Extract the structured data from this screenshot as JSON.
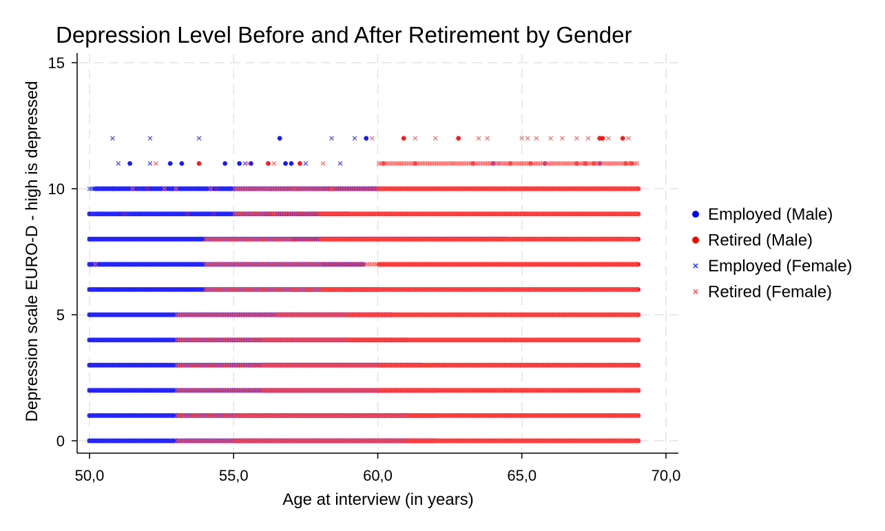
{
  "chart_data": {
    "type": "scatter",
    "title": "Depression Level Before and After Retirement by Gender",
    "xlabel": "Age at interview (in years)",
    "ylabel": "Depression scale EURO-D - high is depressed",
    "xlim": [
      50,
      70
    ],
    "ylim": [
      0,
      15
    ],
    "x_ticks": [
      "50,0",
      "55,0",
      "60,0",
      "65,0",
      "70,0"
    ],
    "y_ticks": [
      "0",
      "5",
      "10",
      "15"
    ],
    "grid": true,
    "legend_position": "right",
    "series": [
      {
        "name": "Employed (Male)",
        "marker": "circle",
        "color": "#0000ff",
        "ranges": [
          [
            0,
            50,
            62
          ],
          [
            1,
            50,
            62
          ],
          [
            2,
            50,
            62
          ],
          [
            3,
            50,
            61.5
          ],
          [
            4,
            50,
            61
          ],
          [
            5,
            50,
            60.5
          ],
          [
            6,
            50,
            60
          ],
          [
            7,
            50,
            59.5
          ],
          [
            8,
            50,
            64.5
          ],
          [
            9,
            50,
            59
          ],
          [
            10,
            50.2,
            60
          ]
        ],
        "points": [
          [
            56.6,
            12
          ],
          [
            59.6,
            12
          ],
          [
            51.4,
            11
          ],
          [
            52.8,
            11
          ],
          [
            53.2,
            11
          ],
          [
            54.7,
            11
          ],
          [
            55.2,
            11
          ],
          [
            55.6,
            11
          ],
          [
            56.8,
            11
          ],
          [
            57.0,
            11
          ],
          [
            65.8,
            11
          ],
          [
            67.7,
            11
          ],
          [
            64.0,
            11
          ],
          [
            50.8,
            10
          ],
          [
            52.5,
            10
          ],
          [
            54.9,
            10
          ],
          [
            59.5,
            10
          ],
          [
            59.8,
            10
          ],
          [
            58.3,
            10
          ],
          [
            52.9,
            10
          ],
          [
            50.4,
            9
          ],
          [
            51.0,
            9
          ],
          [
            51.8,
            9
          ],
          [
            55.1,
            9
          ],
          [
            57.4,
            9
          ]
        ]
      },
      {
        "name": "Retired (Male)",
        "marker": "circle",
        "color": "#ff0000",
        "ranges": [
          [
            0,
            55,
            69
          ],
          [
            1,
            55,
            69
          ],
          [
            2,
            56,
            69
          ],
          [
            3,
            56,
            69
          ],
          [
            4,
            56,
            69
          ],
          [
            5,
            56.5,
            69
          ],
          [
            6,
            57,
            69
          ],
          [
            7,
            60,
            69
          ],
          [
            8,
            58,
            69
          ],
          [
            9,
            58,
            69
          ],
          [
            10,
            60,
            69
          ]
        ],
        "points": [
          [
            60.9,
            12
          ],
          [
            62.8,
            12
          ],
          [
            67.7,
            12
          ],
          [
            67.8,
            12
          ],
          [
            68.5,
            12
          ],
          [
            53.8,
            11
          ],
          [
            56.2,
            11
          ],
          [
            57.3,
            11
          ],
          [
            60.2,
            11
          ],
          [
            61.3,
            11
          ],
          [
            63.3,
            11
          ],
          [
            64.6,
            11
          ],
          [
            65.3,
            11
          ],
          [
            66.9,
            11
          ],
          [
            67.2,
            11
          ],
          [
            67.5,
            11
          ],
          [
            68.6,
            11
          ],
          [
            68.8,
            11
          ],
          [
            52.0,
            10
          ],
          [
            54.4,
            10
          ],
          [
            57.1,
            10
          ],
          [
            58.4,
            10
          ],
          [
            51.2,
            9
          ],
          [
            53.4,
            9
          ],
          [
            54.3,
            9
          ],
          [
            56.4,
            9
          ]
        ]
      },
      {
        "name": "Employed (Female)",
        "marker": "x",
        "color": "#3333ff",
        "ranges": [
          [
            0,
            50,
            61
          ],
          [
            1,
            50,
            61
          ],
          [
            2,
            50,
            60
          ],
          [
            3,
            50,
            60
          ],
          [
            4,
            50,
            59
          ],
          [
            5,
            50,
            59
          ],
          [
            6,
            50,
            58
          ],
          [
            7,
            50,
            58
          ],
          [
            8,
            50,
            57
          ],
          [
            9,
            50,
            56
          ],
          [
            10,
            50,
            58
          ]
        ],
        "points": [
          [
            50.8,
            12
          ],
          [
            52.1,
            12
          ],
          [
            53.8,
            12
          ],
          [
            58.4,
            12
          ],
          [
            59.2,
            12
          ],
          [
            51.0,
            11
          ],
          [
            52.1,
            11
          ],
          [
            55.4,
            11
          ],
          [
            57.5,
            11
          ],
          [
            58.7,
            11
          ],
          [
            64.2,
            11
          ],
          [
            50.4,
            10
          ],
          [
            51.7,
            10
          ],
          [
            53.6,
            10
          ],
          [
            56.1,
            10
          ],
          [
            50.1,
            9
          ],
          [
            51.3,
            9
          ]
        ]
      },
      {
        "name": "Retired (Female)",
        "marker": "x",
        "color": "#ff5555",
        "ranges": [
          [
            0,
            53,
            69
          ],
          [
            1,
            53,
            69
          ],
          [
            2,
            53,
            69
          ],
          [
            3,
            53,
            69
          ],
          [
            4,
            53,
            69
          ],
          [
            5,
            53,
            69
          ],
          [
            6,
            54,
            69
          ],
          [
            7,
            54,
            69
          ],
          [
            8,
            54,
            69
          ],
          [
            9,
            55,
            69
          ],
          [
            10,
            55,
            69
          ],
          [
            11,
            60,
            69
          ]
        ],
        "points": [
          [
            59.8,
            12
          ],
          [
            61.3,
            12
          ],
          [
            62.0,
            12
          ],
          [
            63.5,
            12
          ],
          [
            63.8,
            12
          ],
          [
            65.0,
            12
          ],
          [
            65.2,
            12
          ],
          [
            65.5,
            12
          ],
          [
            66.0,
            12
          ],
          [
            66.4,
            12
          ],
          [
            66.9,
            12
          ],
          [
            67.3,
            12
          ],
          [
            68.0,
            12
          ],
          [
            68.7,
            12
          ],
          [
            52.3,
            11
          ],
          [
            55.5,
            11
          ],
          [
            56.4,
            11
          ],
          [
            58.1,
            11
          ],
          [
            62.6,
            11
          ],
          [
            50.2,
            7
          ],
          [
            51.5,
            10
          ],
          [
            52.6,
            10
          ],
          [
            53.0,
            10
          ],
          [
            54.2,
            10
          ]
        ]
      }
    ]
  }
}
